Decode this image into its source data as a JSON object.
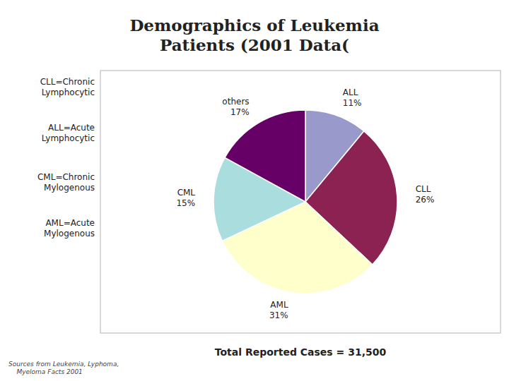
{
  "chart_data": {
    "type": "pie",
    "title": "Demographics of Leukemia\nPatients (2001 Data(",
    "categories": [
      "ALL",
      "CLL",
      "AML",
      "CML",
      "others"
    ],
    "values": [
      11,
      26,
      31,
      15,
      17
    ],
    "value_labels": [
      "11%",
      "26%",
      "31%",
      "15%",
      "17%"
    ],
    "colors": [
      "#9999cc",
      "#8b2252",
      "#ffffcc",
      "#aadddd",
      "#660066"
    ],
    "data_labels": true,
    "annotations": [
      "CLL=Chronic\nLymphocytic",
      "ALL=Acute\nLymphocytic",
      "CML=Chronic\nMylogenous",
      "AML=Acute\nMylogenous"
    ],
    "caption": "Total Reported Cases = 31,500",
    "source": "Sources from Leukemia, Lyphoma,\n    Myeloma Facts 2001"
  }
}
